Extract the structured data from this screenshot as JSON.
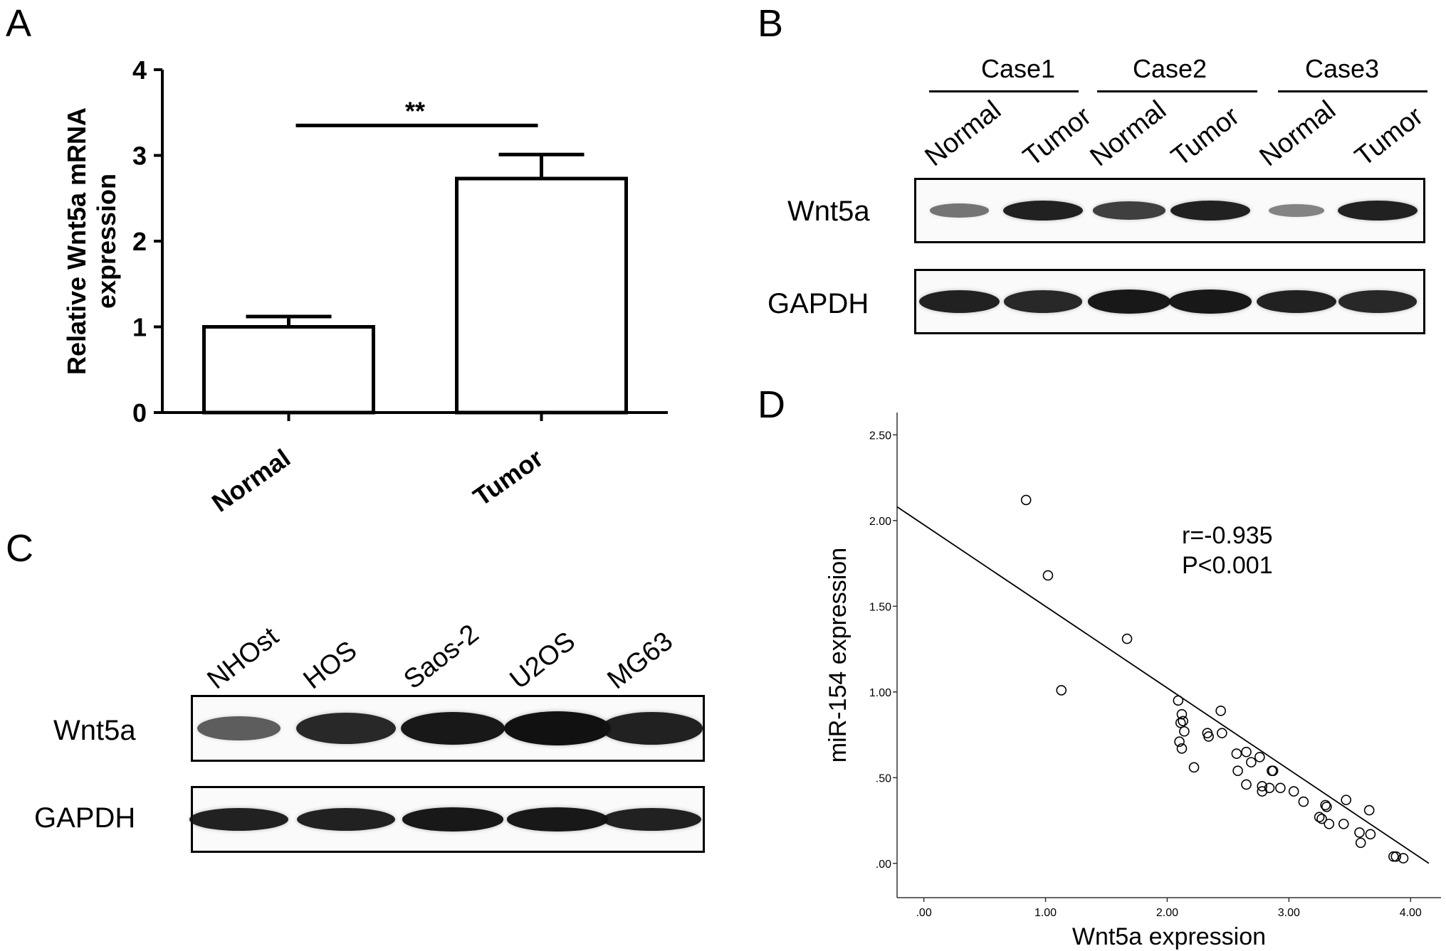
{
  "panels": {
    "a": "A",
    "b": "B",
    "c": "C",
    "d": "D"
  },
  "chart_data": [
    {
      "type": "bar",
      "panel": "A",
      "categories": [
        "Normal",
        "Tumor"
      ],
      "values": [
        1.0,
        2.73
      ],
      "errors": [
        0.12,
        0.28
      ],
      "ylabel": "Relative Wnt5a mRNA expression",
      "ylabel_lines": [
        "Relative Wnt5a mRNA",
        "expression"
      ],
      "ylim": [
        0,
        4
      ],
      "yticks": [
        "0",
        "1",
        "2",
        "3",
        "4"
      ],
      "significance": "**",
      "grid": false
    },
    {
      "type": "scatter",
      "panel": "D",
      "xlabel": "Wnt5a expression",
      "ylabel": "miR-154 expression",
      "xlim": [
        -0.22,
        4.25
      ],
      "ylim": [
        -0.2,
        2.63
      ],
      "xticks": [
        ".00",
        "1.00",
        "2.00",
        "3.00",
        "4.00"
      ],
      "yticks": [
        ".00",
        ".50",
        "1.00",
        "1.50",
        "2.00",
        "2.50"
      ],
      "annotation": [
        "r=-0.935",
        "P<0.001"
      ],
      "fit_line": {
        "x": [
          -0.22,
          4.15
        ],
        "y": [
          2.08,
          0.0
        ]
      },
      "grid": false,
      "x": [
        0.84,
        1.02,
        1.13,
        1.67,
        2.09,
        2.1,
        2.12,
        2.11,
        2.12,
        2.14,
        2.13,
        2.22,
        2.33,
        2.34,
        2.44,
        2.45,
        2.57,
        2.58,
        2.65,
        2.65,
        2.69,
        2.76,
        2.78,
        2.78,
        2.84,
        2.86,
        2.87,
        2.93,
        3.04,
        3.12,
        3.25,
        3.27,
        3.3,
        3.33,
        3.31,
        3.45,
        3.47,
        3.58,
        3.59,
        3.66,
        3.67,
        3.86,
        3.88,
        3.94
      ],
      "y": [
        2.12,
        1.68,
        1.01,
        1.31,
        0.95,
        0.71,
        0.67,
        0.82,
        0.87,
        0.77,
        0.83,
        0.56,
        0.76,
        0.74,
        0.89,
        0.76,
        0.64,
        0.54,
        0.65,
        0.46,
        0.59,
        0.62,
        0.42,
        0.45,
        0.44,
        0.54,
        0.54,
        0.44,
        0.42,
        0.36,
        0.27,
        0.26,
        0.34,
        0.23,
        0.33,
        0.23,
        0.37,
        0.18,
        0.12,
        0.31,
        0.17,
        0.04,
        0.04,
        0.03
      ]
    }
  ],
  "blot_b": {
    "cases": [
      "Case1",
      "Case2",
      "Case3"
    ],
    "lanes": [
      "Normal",
      "Tumor",
      "Normal",
      "Tumor",
      "Normal",
      "Tumor"
    ],
    "rows": [
      "Wnt5a",
      "GAPDH"
    ],
    "wnt5a_intensity": [
      0.35,
      0.9,
      0.7,
      0.9,
      0.25,
      0.9
    ],
    "gapdh_intensity": [
      0.9,
      0.85,
      0.95,
      0.95,
      0.9,
      0.85
    ]
  },
  "blot_c": {
    "lanes": [
      "NHOst",
      "HOS",
      "Saos-2",
      "U2OS",
      "MG63"
    ],
    "rows": [
      "Wnt5a",
      "GAPDH"
    ],
    "wnt5a_intensity": [
      0.5,
      0.85,
      0.95,
      1.0,
      0.9
    ],
    "gapdh_intensity": [
      0.9,
      0.9,
      0.95,
      0.95,
      0.9
    ]
  },
  "colors": {
    "ink": "#000000",
    "band": "#111111",
    "background": "#ffffff"
  }
}
